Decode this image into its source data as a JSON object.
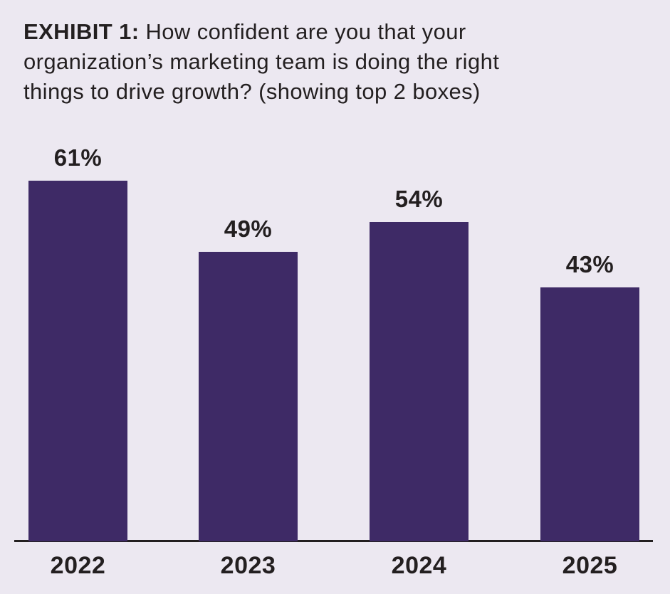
{
  "title": {
    "line1_bold": "EXHIBIT 1:",
    "line1_rest": " How confident are you that your",
    "line2": "organization’s marketing team is doing the right",
    "line3": "things to drive growth? (showing top 2 boxes)"
  },
  "chart_data": {
    "type": "bar",
    "title": "EXHIBIT 1: How confident are you that your organization’s marketing team is doing the right things to drive growth? (showing top 2 boxes)",
    "categories": [
      "2022",
      "2023",
      "2024",
      "2025"
    ],
    "values": [
      61,
      49,
      54,
      43
    ],
    "value_labels": [
      "61%",
      "49%",
      "54%",
      "43%"
    ],
    "xlabel": "",
    "ylabel": "",
    "ylim": [
      0,
      70
    ],
    "grid": false,
    "legend": false,
    "colors": {
      "bar": "#3E2A66",
      "background": "#ECE8F1",
      "text": "#231F20",
      "axis_line": "#231F20"
    }
  }
}
